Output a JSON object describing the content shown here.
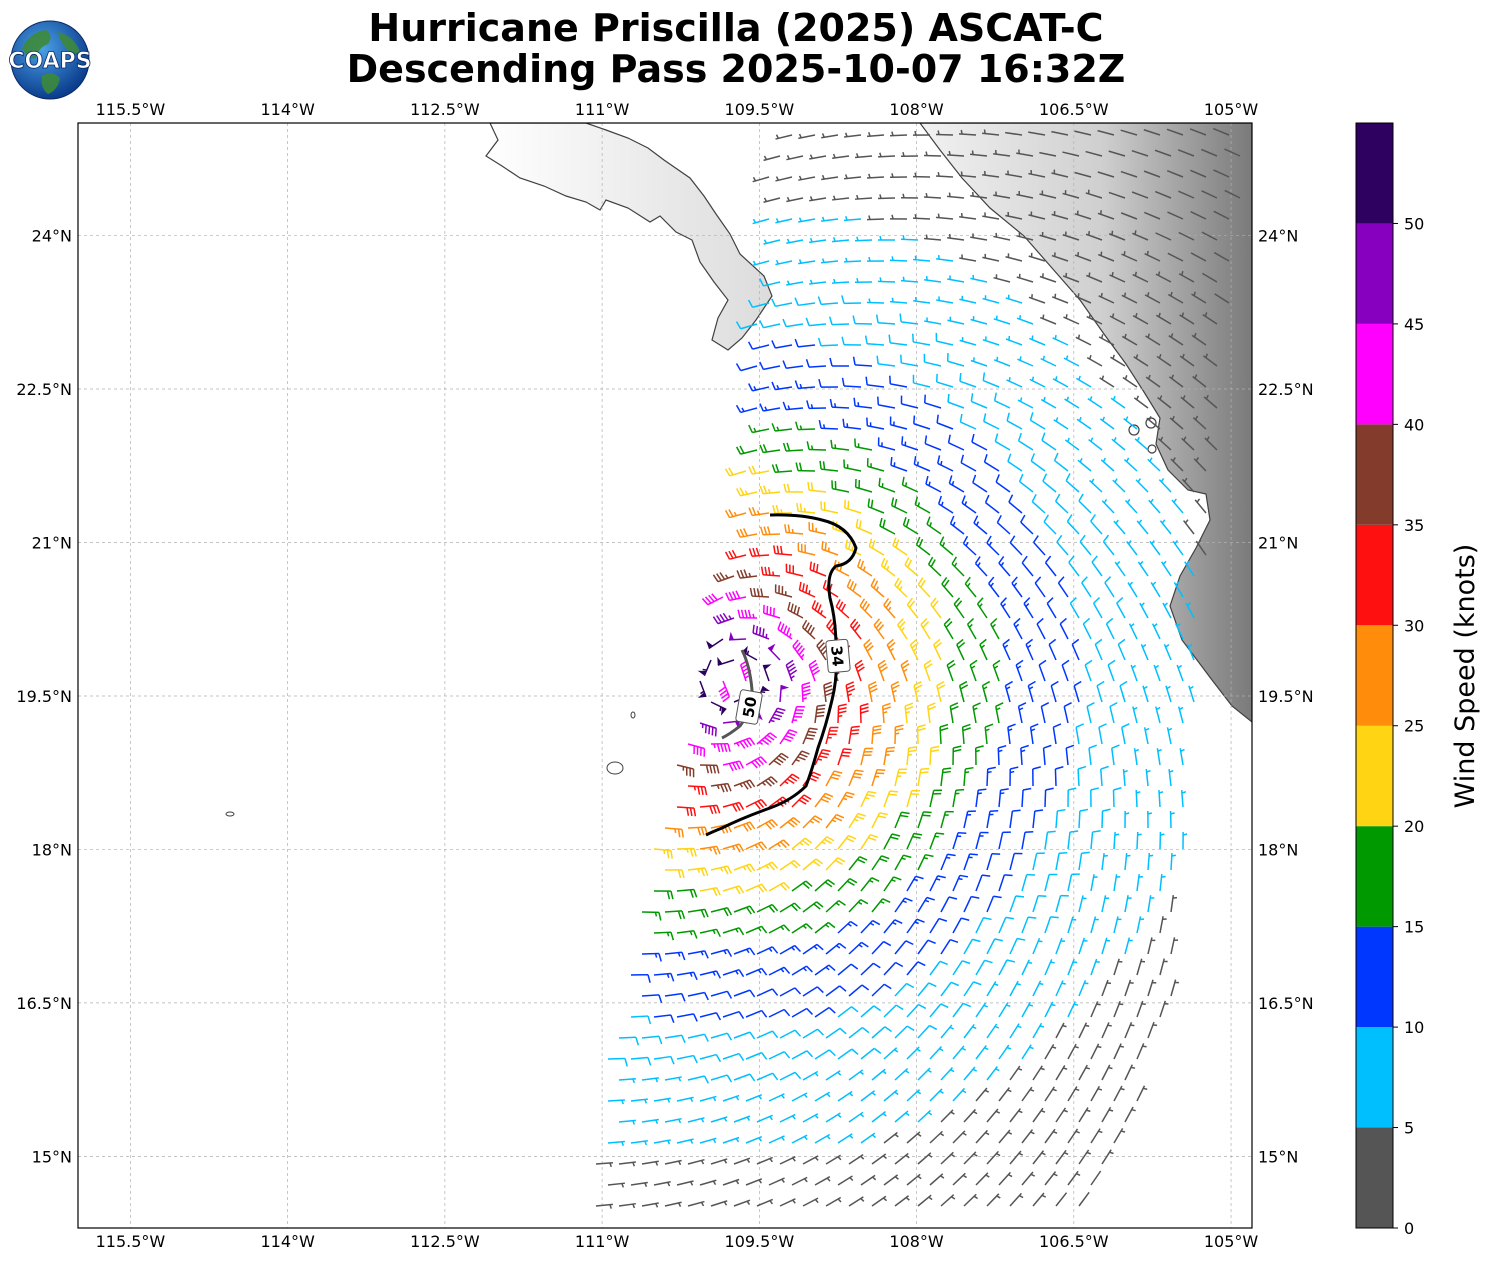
{
  "header": {
    "title_line1": "Hurricane Priscilla (2025) ASCAT-C",
    "title_line2": "Descending Pass 2025-10-07 16:32Z",
    "logo_text": "COAPS"
  },
  "map": {
    "lon_range": [
      -116,
      -104.8
    ],
    "lat_range": [
      14.3,
      25.1
    ],
    "lon_ticks": [
      {
        "value": -115.5,
        "label": "115.5°W"
      },
      {
        "value": -114,
        "label": "114°W"
      },
      {
        "value": -112.5,
        "label": "112.5°W"
      },
      {
        "value": -111,
        "label": "111°W"
      },
      {
        "value": -109.5,
        "label": "109.5°W"
      },
      {
        "value": -108,
        "label": "108°W"
      },
      {
        "value": -106.5,
        "label": "106.5°W"
      },
      {
        "value": -105,
        "label": "105°W"
      }
    ],
    "lat_ticks": [
      {
        "value": 24,
        "label": "24°N"
      },
      {
        "value": 22.5,
        "label": "22.5°N"
      },
      {
        "value": 21,
        "label": "21°N"
      },
      {
        "value": 19.5,
        "label": "19.5°N"
      },
      {
        "value": 18,
        "label": "18°N"
      },
      {
        "value": 16.5,
        "label": "16.5°N"
      },
      {
        "value": 15,
        "label": "15°N"
      }
    ],
    "gridlines": true,
    "storm_center": {
      "lon": -109.75,
      "lat": 19.65
    },
    "contours": [
      {
        "label": "34",
        "label_lon": -108.83,
        "label_lat": 19.9
      },
      {
        "label": "50",
        "label_lon": -109.63,
        "label_lat": 19.38
      }
    ],
    "wind_field_colors": [
      "#555555",
      "#00bfff",
      "#0037ff",
      "#009900",
      "#ffd412",
      "#ff8c0a",
      "#ff1010",
      "#833c2b",
      "#ff00ff",
      "#8700bf",
      "#2e005f"
    ]
  },
  "colorbar": {
    "label": "Wind Speed (knots)",
    "bounds": [
      0,
      5,
      10,
      15,
      20,
      25,
      30,
      35,
      40,
      45,
      50,
      55
    ],
    "tick_labels": [
      "0",
      "5",
      "10",
      "15",
      "20",
      "25",
      "30",
      "35",
      "40",
      "45",
      "50"
    ],
    "colors": [
      "#555555",
      "#00bfff",
      "#0037ff",
      "#009900",
      "#ffd412",
      "#ff8c0a",
      "#ff1010",
      "#833c2b",
      "#ff00ff",
      "#8700bf",
      "#2e005f"
    ]
  }
}
